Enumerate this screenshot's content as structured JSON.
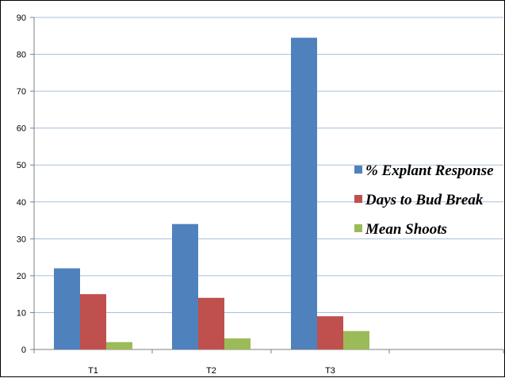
{
  "chart_data": {
    "type": "bar",
    "categories": [
      "T1",
      "T2",
      "T3"
    ],
    "series": [
      {
        "name": "% Explant Response",
        "values": [
          22,
          34,
          84.5
        ],
        "color": "#4f81bd"
      },
      {
        "name": "Days to Bud Break",
        "values": [
          15,
          14,
          9
        ],
        "color": "#c0504d"
      },
      {
        "name": "Mean Shoots",
        "values": [
          2,
          3,
          5
        ],
        "color": "#9bbb59"
      }
    ],
    "ylim": [
      0,
      90
    ],
    "yticks": [
      0,
      10,
      20,
      30,
      40,
      50,
      60,
      70,
      80,
      90
    ],
    "grid": true,
    "gridline_color": "#a7bfdf",
    "legend_position": "right"
  }
}
